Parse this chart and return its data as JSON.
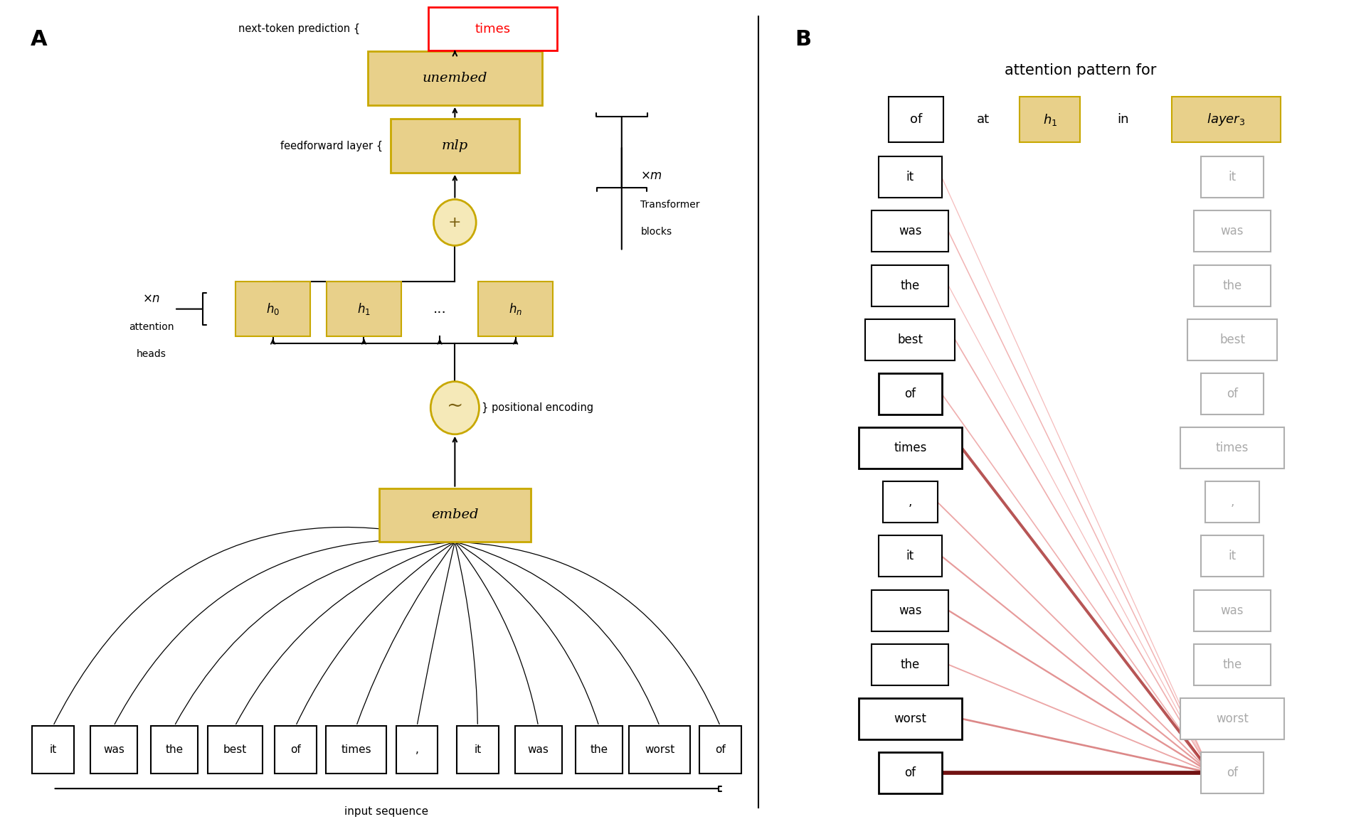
{
  "bg_color": "#ffffff",
  "golden_fill": "#e8d08a",
  "golden_edge": "#c8a800",
  "panel_a_label": "A",
  "panel_b_label": "B",
  "input_tokens": [
    "it",
    "was",
    "the",
    "best",
    "of",
    "times",
    ",",
    "it",
    "was",
    "the",
    "worst",
    "of"
  ],
  "panel_b_left_tokens": [
    "it",
    "was",
    "the",
    "best",
    "of",
    "times",
    ",",
    "it",
    "was",
    "the",
    "worst",
    "of"
  ],
  "panel_b_right_tokens": [
    "it",
    "was",
    "the",
    "best",
    "of",
    "times",
    ",",
    "it",
    "was",
    "the",
    "worst",
    "of"
  ],
  "attention_weights": [
    0.1,
    0.15,
    0.1,
    0.18,
    0.18,
    0.65,
    0.22,
    0.28,
    0.32,
    0.22,
    0.38,
    1.0
  ],
  "title_b": "attention pattern for",
  "next_token": "times"
}
